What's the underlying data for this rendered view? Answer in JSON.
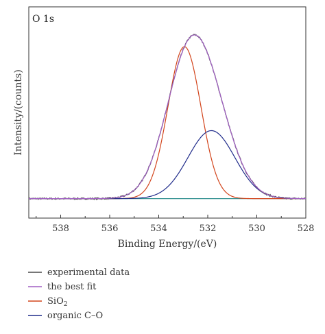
{
  "chart_data": {
    "type": "line",
    "panel_label": "O 1s",
    "xlabel": "Binding Energy/(eV)",
    "ylabel": "Intensity/(counts)",
    "x_reversed": true,
    "xlim": [
      539.3,
      528
    ],
    "xticks": [
      538,
      536,
      534,
      532,
      530,
      528
    ],
    "ylim": [
      -0.08,
      1.06
    ],
    "y_tick_labels_shown": false,
    "baseline": 0.025,
    "series": [
      {
        "name": "experimental data",
        "color": "#4a4a4a",
        "peaks": [
          [
            532.85,
            0.635,
            1.32
          ],
          [
            531.85,
            0.367,
            1.35
          ]
        ],
        "noise": true
      },
      {
        "name": "the best fit",
        "color": "#a15fc4",
        "peaks": [
          [
            532.85,
            0.635,
            1.32
          ],
          [
            531.85,
            0.367,
            1.35
          ]
        ],
        "noise": false
      },
      {
        "name": "SiO",
        "subscript": "2",
        "color": "#d2431a",
        "peaks": [
          [
            532.95,
            0.82,
            0.95
          ]
        ],
        "noise": false
      },
      {
        "name": "organic C–O",
        "color": "#1f2b8a",
        "peaks": [
          [
            531.85,
            0.367,
            1.35
          ]
        ],
        "noise": false
      },
      {
        "color": "#2f8f8f",
        "peaks": [],
        "noise": false
      }
    ],
    "legend": {
      "position": "bottom-left"
    }
  }
}
